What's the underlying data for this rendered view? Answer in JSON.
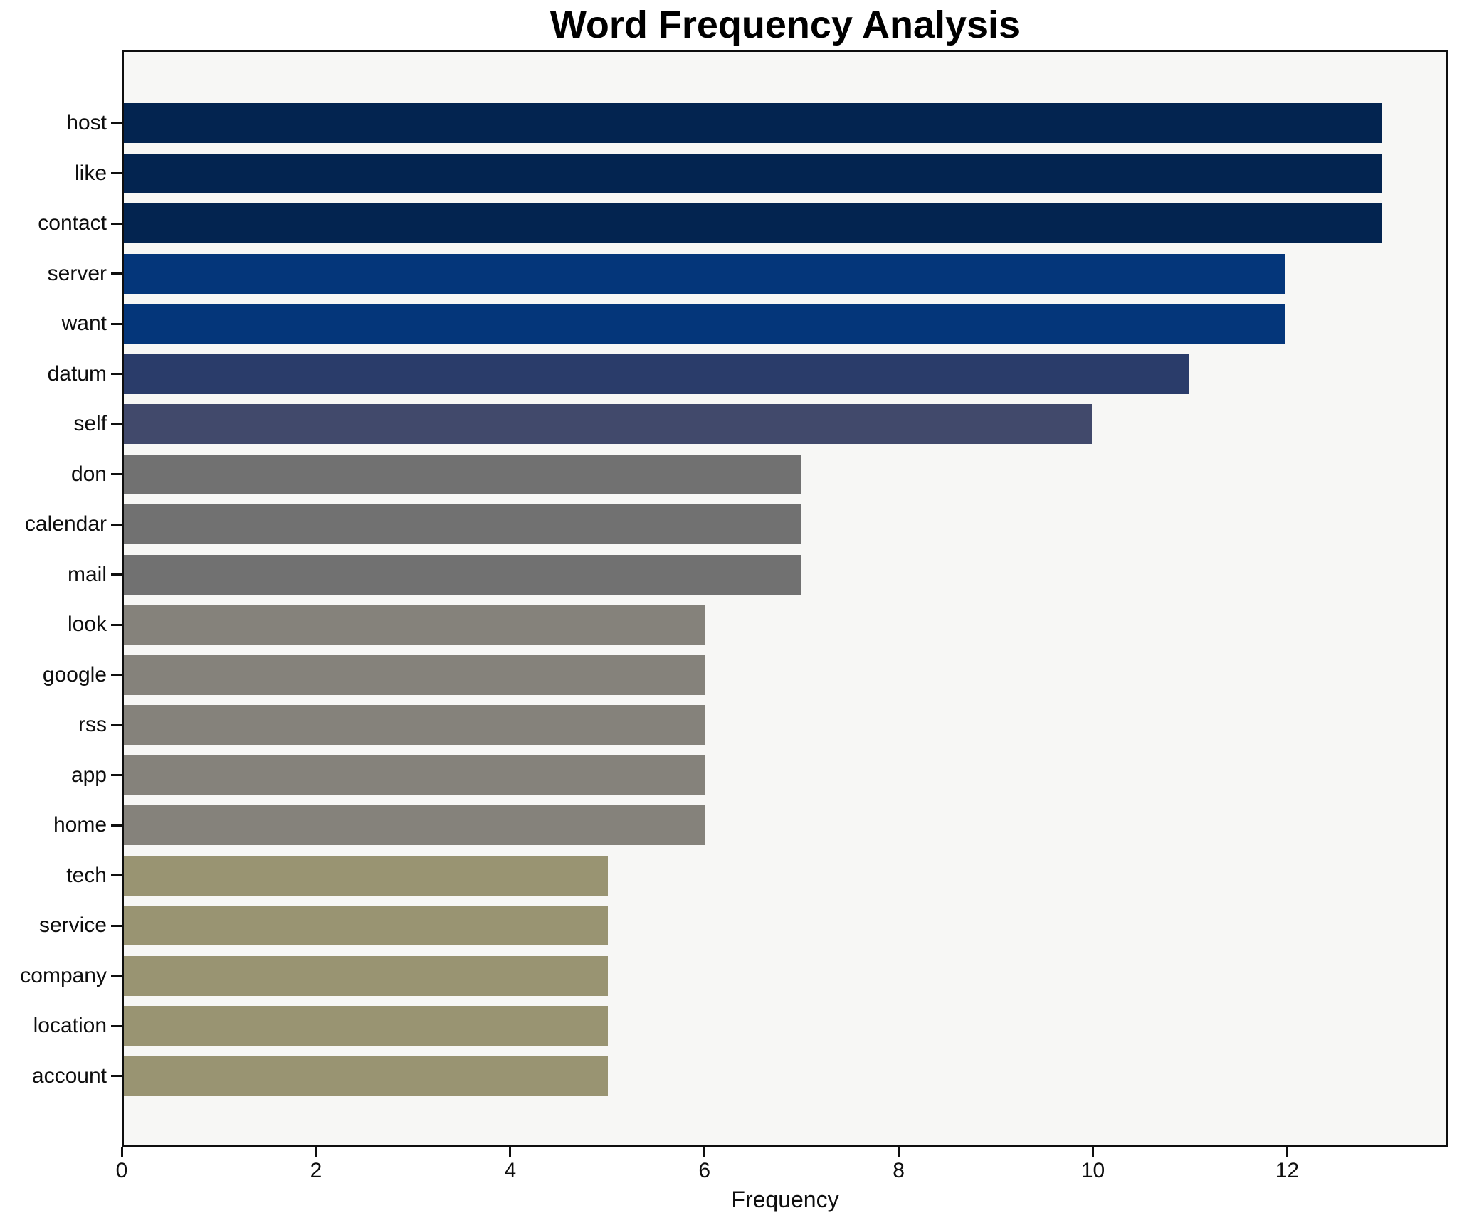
{
  "chart_data": {
    "type": "bar",
    "orientation": "horizontal",
    "title": "Word Frequency Analysis",
    "xlabel": "Frequency",
    "ylabel": "",
    "categories": [
      "host",
      "like",
      "contact",
      "server",
      "want",
      "datum",
      "self",
      "don",
      "calendar",
      "mail",
      "look",
      "google",
      "rss",
      "app",
      "home",
      "tech",
      "service",
      "company",
      "location",
      "account"
    ],
    "values": [
      13,
      13,
      13,
      12,
      12,
      11,
      10,
      7,
      7,
      7,
      6,
      6,
      6,
      6,
      6,
      5,
      5,
      5,
      5,
      5
    ],
    "bar_colors": [
      "#032450",
      "#032450",
      "#032450",
      "#04367A",
      "#04367A",
      "#2A3C6A",
      "#41496B",
      "#717171",
      "#717171",
      "#717171",
      "#85827B",
      "#85827B",
      "#85827B",
      "#85827B",
      "#85827B",
      "#999472",
      "#999472",
      "#999472",
      "#999472",
      "#999472"
    ],
    "xlim": [
      0,
      13.66
    ],
    "xticks": [
      0,
      2,
      4,
      6,
      8,
      10,
      12
    ],
    "grid": false,
    "legend": null,
    "plot_background": "#f7f7f5",
    "figure_background": "#ffffff",
    "spine_color": "#0e0e0e",
    "title_color": "#000000"
  }
}
